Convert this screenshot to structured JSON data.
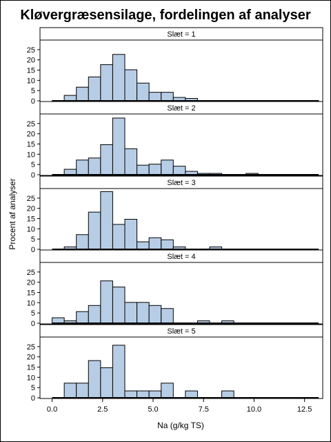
{
  "chart_data": {
    "type": "bar",
    "title": "Kløvergræsensilage, fordelingen af analyser",
    "xlabel": "Na (g/kg TS)",
    "ylabel": "Procent af analyser",
    "xlim": [
      -0.6,
      13.4
    ],
    "xticks": [
      "0.0",
      "2.5",
      "5.0",
      "7.5",
      "10.0",
      "12.5"
    ],
    "ylim": [
      0,
      30
    ],
    "yticks": [
      "0",
      "5",
      "10",
      "15",
      "20",
      "25"
    ],
    "bin_width": 0.6,
    "bin_start": 0.0,
    "panels": [
      {
        "label": "Slæt = 1",
        "values": [
          0.4,
          3.0,
          7.0,
          12.0,
          18.0,
          23.0,
          15.5,
          9.0,
          4.5,
          4.5,
          2.0,
          1.5,
          0.4,
          0.4,
          0,
          0,
          0,
          0,
          0,
          0,
          0,
          0.4
        ]
      },
      {
        "label": "Slæt = 2",
        "values": [
          0,
          3.0,
          7.5,
          8.5,
          15.0,
          28.0,
          13.0,
          5.0,
          5.5,
          7.5,
          4.5,
          2.0,
          1.0,
          1.0,
          0,
          0,
          1.0,
          0,
          0,
          0,
          0,
          0
        ]
      },
      {
        "label": "Slæt = 3",
        "values": [
          0,
          1.5,
          7.5,
          18.5,
          28.5,
          12.5,
          15.0,
          4.0,
          6.0,
          5.0,
          1.5,
          0,
          0,
          1.5,
          0,
          0,
          0,
          0,
          0,
          0,
          0,
          0
        ]
      },
      {
        "label": "Slæt = 4",
        "values": [
          3.0,
          1.5,
          6.0,
          9.0,
          21.0,
          18.0,
          10.5,
          10.5,
          9.0,
          7.5,
          0,
          0,
          1.5,
          0,
          1.5,
          0,
          0,
          0,
          0,
          0,
          0,
          0
        ]
      },
      {
        "label": "Slæt = 5",
        "values": [
          0,
          7.5,
          7.5,
          18.5,
          15.0,
          26.0,
          3.7,
          3.7,
          3.7,
          7.5,
          0,
          3.7,
          0,
          0,
          3.7,
          0,
          0,
          0,
          0,
          0,
          0,
          0
        ]
      }
    ]
  }
}
